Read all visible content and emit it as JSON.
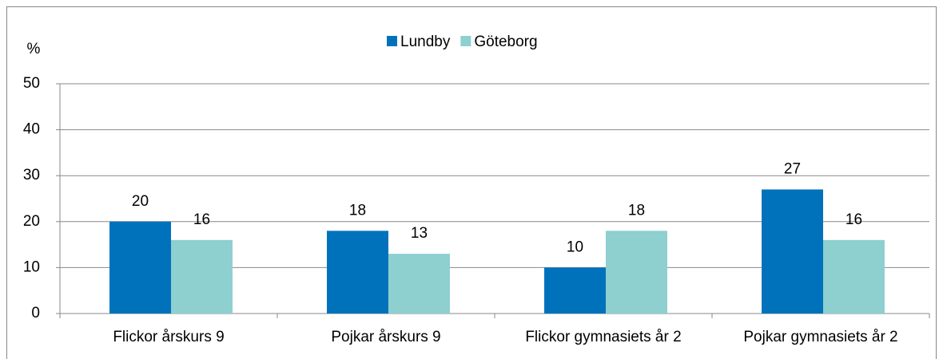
{
  "chart_data": {
    "type": "bar",
    "ylabel": "%",
    "categories": [
      "Flickor årskurs 9",
      "Pojkar årskurs 9",
      "Flickor gymnasiets år 2",
      "Pojkar gymnasiets år 2"
    ],
    "series": [
      {
        "name": "Lundby",
        "color": "#0072bc",
        "values": [
          20,
          18,
          10,
          27
        ]
      },
      {
        "name": "Göteborg",
        "color": "#8ecfd0",
        "values": [
          16,
          13,
          18,
          16
        ]
      }
    ],
    "ylim": [
      0,
      50
    ],
    "yticks": [
      0,
      10,
      20,
      30,
      40,
      50
    ],
    "grid": true,
    "legend": "top"
  }
}
